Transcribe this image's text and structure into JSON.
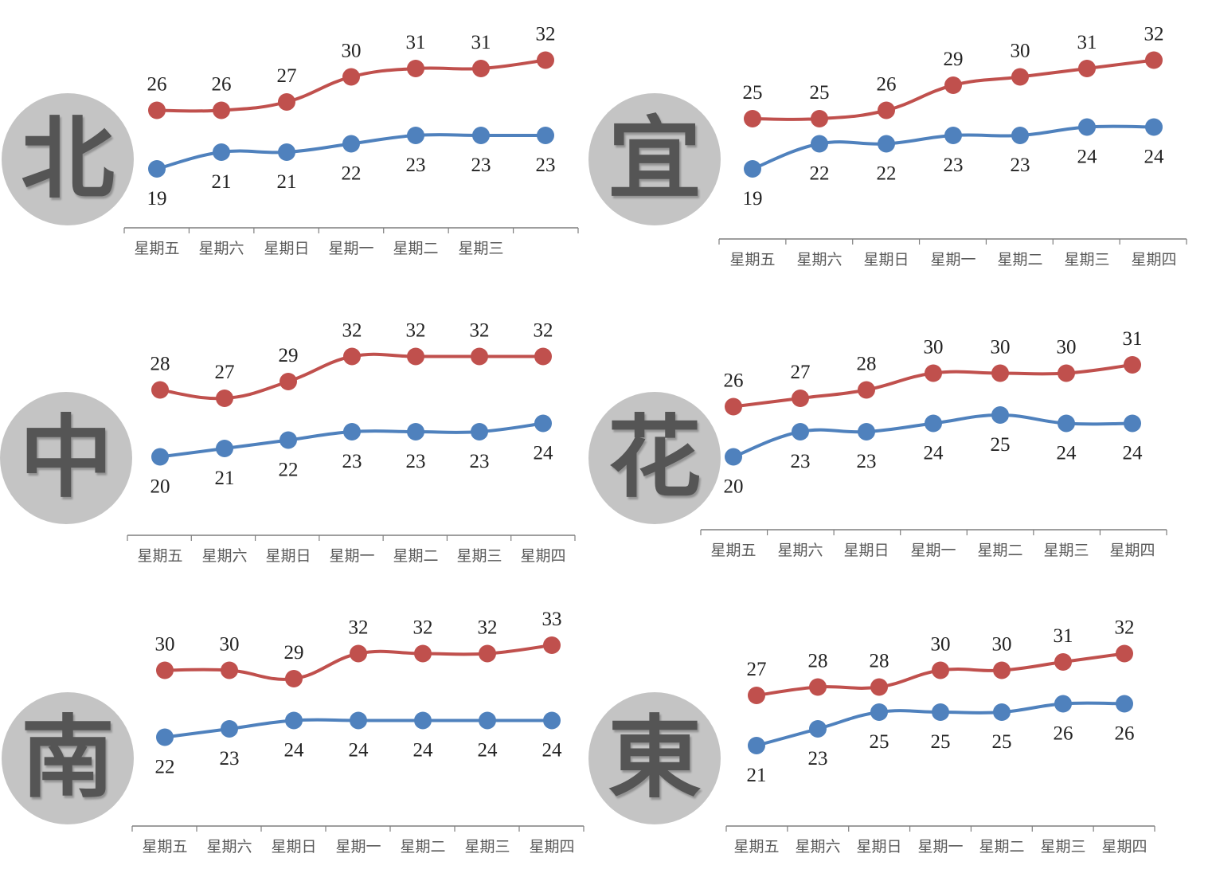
{
  "colors": {
    "high": "#c0504d",
    "low": "#4f81bd",
    "badge": "#c4c4c4",
    "axis": "#7f7f7f"
  },
  "chart_data": [
    {
      "type": "line",
      "city": "北",
      "categories": [
        "星期五",
        "星期六",
        "星期日",
        "星期一",
        "星期二",
        "星期三",
        ""
      ],
      "series": [
        {
          "values": [
            26,
            26,
            27,
            30,
            31,
            31,
            32
          ]
        },
        {
          "values": [
            19,
            21,
            21,
            22,
            23,
            23,
            23
          ]
        }
      ]
    },
    {
      "type": "line",
      "city": "宜",
      "categories": [
        "星期五",
        "星期六",
        "星期日",
        "星期一",
        "星期二",
        "星期三",
        "星期四"
      ],
      "series": [
        {
          "values": [
            25,
            25,
            26,
            29,
            30,
            31,
            32
          ]
        },
        {
          "values": [
            19,
            22,
            22,
            23,
            23,
            24,
            24
          ]
        }
      ]
    },
    {
      "type": "line",
      "city": "中",
      "categories": [
        "星期五",
        "星期六",
        "星期日",
        "星期一",
        "星期二",
        "星期三",
        "星期四"
      ],
      "series": [
        {
          "values": [
            28,
            27,
            29,
            32,
            32,
            32,
            32
          ]
        },
        {
          "values": [
            20,
            21,
            22,
            23,
            23,
            23,
            24
          ]
        }
      ]
    },
    {
      "type": "line",
      "city": "花",
      "categories": [
        "星期五",
        "星期六",
        "星期日",
        "星期一",
        "星期二",
        "星期三",
        "星期四"
      ],
      "series": [
        {
          "values": [
            26,
            27,
            28,
            30,
            30,
            30,
            31
          ]
        },
        {
          "values": [
            20,
            23,
            23,
            24,
            25,
            24,
            24
          ]
        }
      ]
    },
    {
      "type": "line",
      "city": "南",
      "categories": [
        "星期五",
        "星期六",
        "星期日",
        "星期一",
        "星期二",
        "星期三",
        "星期四"
      ],
      "series": [
        {
          "values": [
            30,
            30,
            29,
            32,
            32,
            32,
            33
          ]
        },
        {
          "values": [
            22,
            23,
            24,
            24,
            24,
            24,
            24
          ]
        }
      ]
    },
    {
      "type": "line",
      "city": "東",
      "categories": [
        "星期五",
        "星期六",
        "星期日",
        "星期一",
        "星期二",
        "星期三",
        "星期四"
      ],
      "series": [
        {
          "values": [
            27,
            28,
            28,
            30,
            30,
            31,
            32
          ]
        },
        {
          "values": [
            21,
            23,
            25,
            25,
            25,
            26,
            26
          ]
        }
      ]
    }
  ]
}
